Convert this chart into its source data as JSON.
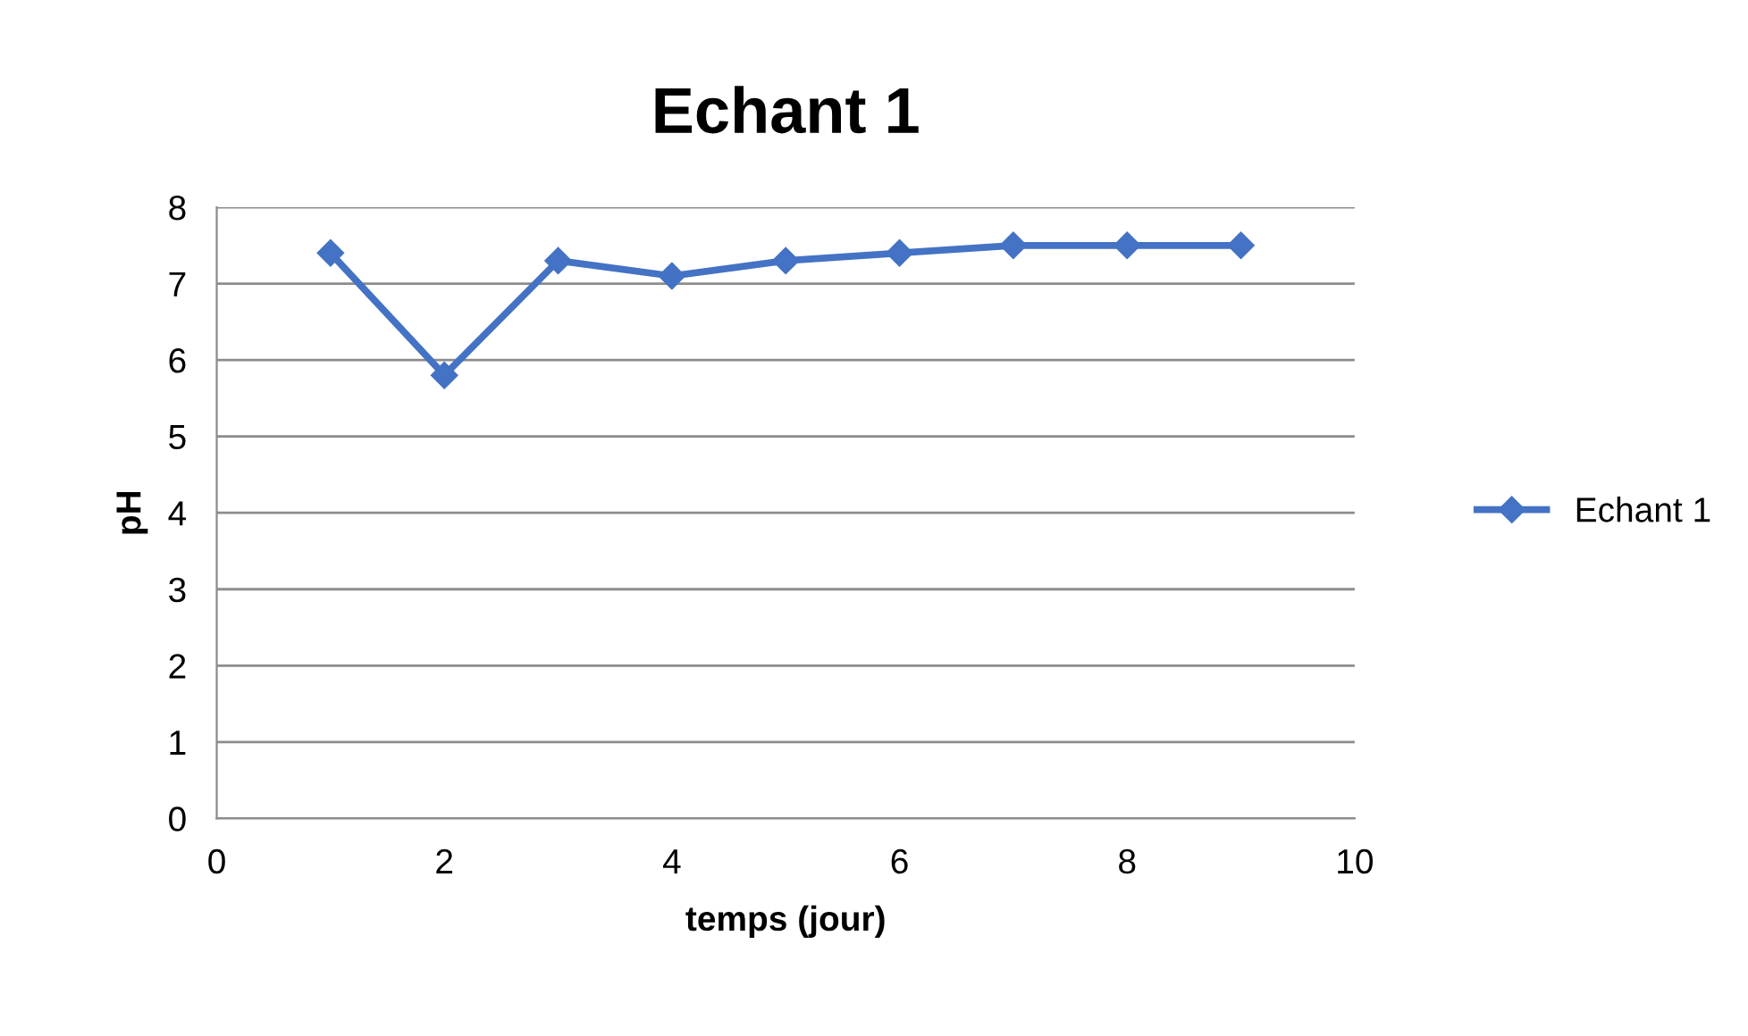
{
  "chart_data": {
    "type": "line",
    "title": "Echant 1",
    "xlabel": "temps (jour)",
    "ylabel": "pH",
    "x": [
      1,
      2,
      3,
      4,
      5,
      6,
      7,
      8,
      9
    ],
    "series": [
      {
        "name": "Echant 1",
        "color": "#4472c4",
        "values": [
          7.4,
          5.8,
          7.3,
          7.1,
          7.3,
          7.4,
          7.5,
          7.5,
          7.5
        ]
      }
    ],
    "xlim": [
      0,
      10
    ],
    "xticks": [
      0,
      2,
      4,
      6,
      8,
      10
    ],
    "ylim": [
      0,
      8
    ],
    "yticks": [
      0,
      1,
      2,
      3,
      4,
      5,
      6,
      7,
      8
    ],
    "grid": "y",
    "legend": "right",
    "marker": "diamond",
    "line_style": "solid"
  }
}
